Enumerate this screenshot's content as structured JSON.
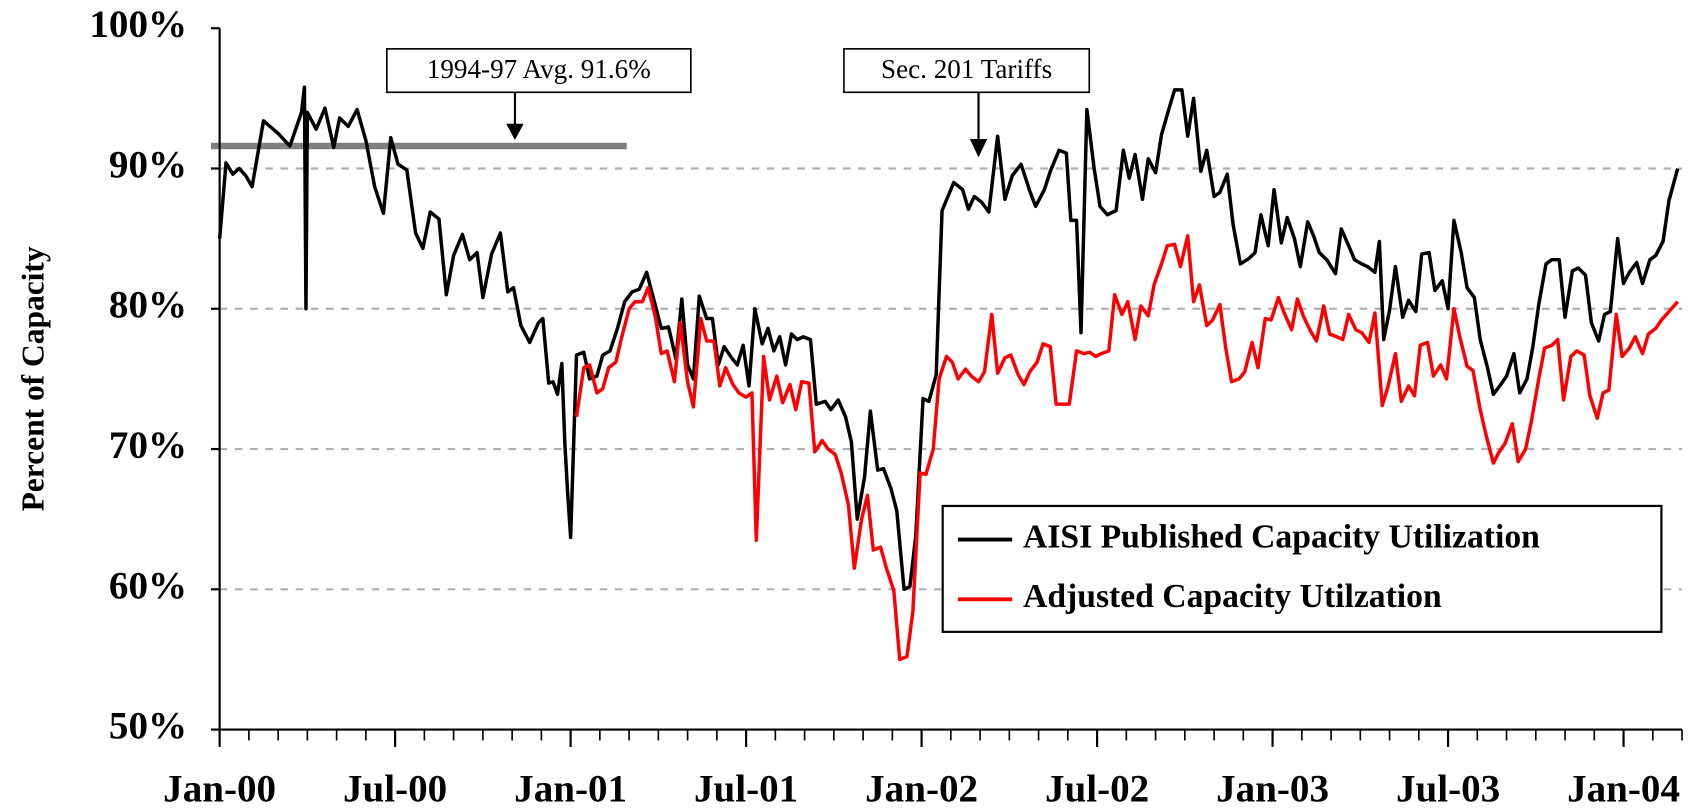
{
  "chart_data": {
    "type": "line",
    "ylabel": "Percent of Capacity",
    "annotations": [
      "1994-97 Avg. 91.6%",
      "Sec. 201 Tariffs"
    ],
    "reference_value": 91.6,
    "reference_color": "#808080",
    "xlim": [
      0,
      50
    ],
    "xticks": [
      {
        "value": 0,
        "label": "Jan-00"
      },
      {
        "value": 6,
        "label": "Jul-00"
      },
      {
        "value": 12,
        "label": "Jan-01"
      },
      {
        "value": 18,
        "label": "Jul-01"
      },
      {
        "value": 24,
        "label": "Jan-02"
      },
      {
        "value": 30,
        "label": "Jul-02"
      },
      {
        "value": 36,
        "label": "Jan-03"
      },
      {
        "value": 42,
        "label": "Jul-03"
      },
      {
        "value": 48,
        "label": "Jan-04"
      }
    ],
    "minor_ticks_every": 1,
    "ylim": [
      50,
      100
    ],
    "yticks": [
      {
        "value": 50,
        "label": "50%"
      },
      {
        "value": 60,
        "label": "60%"
      },
      {
        "value": 70,
        "label": "70%"
      },
      {
        "value": 80,
        "label": "80%"
      },
      {
        "value": 90,
        "label": "90%"
      },
      {
        "value": 100,
        "label": "100%"
      }
    ],
    "grid": true,
    "legend": "lower right",
    "series": [
      {
        "name": "AISI Published Capacity Utilization",
        "color": "#000000",
        "x": [
          0,
          0.22,
          0.45,
          0.67,
          0.89,
          1.11,
          1.5,
          2.0,
          2.4,
          2.8,
          2.9,
          2.95,
          3.0,
          3.3,
          3.6,
          3.9,
          4.1,
          4.4,
          4.7,
          5.0,
          5.3,
          5.6,
          5.85,
          6.1,
          6.4,
          6.7,
          6.95,
          7.2,
          7.5,
          7.75,
          8.0,
          8.3,
          8.55,
          8.8,
          9.0,
          9.3,
          9.6,
          9.85,
          10.05,
          10.3,
          10.6,
          10.9,
          11.05,
          11.25,
          11.4,
          11.55,
          11.7,
          11.8,
          11.9,
          12.0,
          12.2,
          12.45,
          12.65,
          12.9,
          13.1,
          13.35,
          13.6,
          13.85,
          14.1,
          14.35,
          14.6,
          14.85,
          15.1,
          15.35,
          15.6,
          15.8,
          16.0,
          16.2,
          16.4,
          16.65,
          16.85,
          17.05,
          17.25,
          17.5,
          17.7,
          17.9,
          18.1,
          18.3,
          18.55,
          18.75,
          18.95,
          19.15,
          19.35,
          19.55,
          19.75,
          19.95,
          20.2,
          20.4,
          20.7,
          20.9,
          21.15,
          21.4,
          21.6,
          21.8,
          22.05,
          22.25,
          22.5,
          22.7,
          22.95,
          23.15,
          23.4,
          23.6,
          23.8,
          24.05,
          24.25,
          24.5,
          24.7,
          25.1,
          25.4,
          25.6,
          25.8,
          26.05,
          26.3,
          26.6,
          26.85,
          27.1,
          27.4,
          27.7,
          27.9,
          28.2,
          28.4,
          28.7,
          28.95,
          29.1,
          29.3,
          29.45,
          29.65,
          29.9,
          30.1,
          30.35,
          30.65,
          30.9,
          31.1,
          31.3,
          31.55,
          31.75,
          32.0,
          32.2,
          32.45,
          32.65,
          32.9,
          33.1,
          33.3,
          33.55,
          33.75,
          34.0,
          34.2,
          34.45,
          34.65,
          34.9,
          35.2,
          35.4,
          35.6,
          35.85,
          36.05,
          36.3,
          36.5,
          36.75,
          36.95,
          37.2,
          37.4,
          37.6,
          37.85,
          38.15,
          38.35,
          38.6,
          38.8,
          39.05,
          39.25,
          39.5,
          39.65,
          39.8,
          40.0,
          40.2,
          40.45,
          40.65,
          40.9,
          41.1,
          41.35,
          41.55,
          41.8,
          42.0,
          42.2,
          42.45,
          42.65,
          42.9,
          43.1,
          43.35,
          43.55,
          43.8,
          44.0,
          44.25,
          44.45,
          44.7,
          44.9,
          45.1,
          45.35,
          45.55,
          45.8,
          46.0,
          46.25,
          46.45,
          46.7,
          46.9,
          47.15,
          47.35,
          47.55,
          47.8,
          48.0,
          48.2,
          48.45,
          48.65,
          48.9,
          49.1,
          49.35,
          49.55,
          49.85
        ],
        "values": [
          85.0,
          90.4,
          89.6,
          90.0,
          89.5,
          88.7,
          93.4,
          92.5,
          91.6,
          94.0,
          95.8,
          80.0,
          94.0,
          92.8,
          94.3,
          91.5,
          93.6,
          93.0,
          94.2,
          92.0,
          88.7,
          86.8,
          92.2,
          90.3,
          89.9,
          85.4,
          84.3,
          86.9,
          86.4,
          81.0,
          83.8,
          85.3,
          83.5,
          84.0,
          80.8,
          83.9,
          85.4,
          81.2,
          81.5,
          78.8,
          77.6,
          79.0,
          79.3,
          74.7,
          74.8,
          73.9,
          76.1,
          70.5,
          66.8,
          63.7,
          76.7,
          76.9,
          75.0,
          75.2,
          76.7,
          77.0,
          78.6,
          80.5,
          81.2,
          81.4,
          82.6,
          80.6,
          78.6,
          78.7,
          76.4,
          80.7,
          76.0,
          75.0,
          80.9,
          79.3,
          79.3,
          76.0,
          77.3,
          76.5,
          76.0,
          77.4,
          74.5,
          80.0,
          77.5,
          78.6,
          77.0,
          78.0,
          76.0,
          78.2,
          77.8,
          78.0,
          77.8,
          73.2,
          73.4,
          72.8,
          73.5,
          72.3,
          70.5,
          65.0,
          68.0,
          72.7,
          68.5,
          68.6,
          67.2,
          65.6,
          60.0,
          60.2,
          63.8,
          73.6,
          73.4,
          75.3,
          87.0,
          89.0,
          88.5,
          87.1,
          88.0,
          87.6,
          86.9,
          92.3,
          87.8,
          89.5,
          90.3,
          88.4,
          87.3,
          88.5,
          89.8,
          91.3,
          91.1,
          86.3,
          86.3,
          78.3,
          94.2,
          90.0,
          87.3,
          86.7,
          87.0,
          91.3,
          89.3,
          91.0,
          87.8,
          90.7,
          89.7,
          92.4,
          94.2,
          95.6,
          95.6,
          92.3,
          95.0,
          89.8,
          91.3,
          88.0,
          88.3,
          89.6,
          86.0,
          83.2,
          83.6,
          84.0,
          86.7,
          84.5,
          88.5,
          84.7,
          86.5,
          85.0,
          83.0,
          86.2,
          85.2,
          84.0,
          83.5,
          82.5,
          85.7,
          84.5,
          83.5,
          83.2,
          83.0,
          82.6,
          84.8,
          77.8,
          79.9,
          83.0,
          79.4,
          80.6,
          79.8,
          83.9,
          84.0,
          81.3,
          82.0,
          80.0,
          86.3,
          84.0,
          81.5,
          80.8,
          77.8,
          75.8,
          73.9,
          74.6,
          75.2,
          76.8,
          74.0,
          75.0,
          77.3,
          80.3,
          83.2,
          83.5,
          83.5,
          79.4,
          82.7,
          82.9,
          82.4,
          79.0,
          77.7,
          79.6,
          79.8,
          85.0,
          81.8,
          82.6,
          83.3,
          81.8,
          83.5,
          83.8,
          84.8,
          87.7,
          90.0
        ]
      },
      {
        "name": "Adjusted Capacity Utilzation",
        "color": "#ff0000",
        "x": [
          12.2,
          12.45,
          12.65,
          12.9,
          13.1,
          13.3,
          13.55,
          13.75,
          14.0,
          14.2,
          14.45,
          14.65,
          14.9,
          15.1,
          15.3,
          15.55,
          15.75,
          16.0,
          16.2,
          16.45,
          16.65,
          16.9,
          17.1,
          17.3,
          17.55,
          17.75,
          18.0,
          18.2,
          18.35,
          18.6,
          18.8,
          19.05,
          19.25,
          19.5,
          19.7,
          19.9,
          20.15,
          20.35,
          20.6,
          20.8,
          21.05,
          21.25,
          21.5,
          21.7,
          21.95,
          22.15,
          22.35,
          22.6,
          22.8,
          23.05,
          23.25,
          23.5,
          23.7,
          23.95,
          24.15,
          24.4,
          24.6,
          24.85,
          25.05,
          25.25,
          25.5,
          25.7,
          25.95,
          26.15,
          26.4,
          26.6,
          26.85,
          27.05,
          27.3,
          27.5,
          27.7,
          27.95,
          28.15,
          28.4,
          28.6,
          28.85,
          29.05,
          29.3,
          29.55,
          29.75,
          29.95,
          30.15,
          30.4,
          30.6,
          30.85,
          31.05,
          31.3,
          31.5,
          31.75,
          31.95,
          32.2,
          32.4,
          32.65,
          32.85,
          33.1,
          33.3,
          33.5,
          33.75,
          33.95,
          34.2,
          34.4,
          34.6,
          34.85,
          35.05,
          35.3,
          35.5,
          35.75,
          35.95,
          36.2,
          36.4,
          36.65,
          36.85,
          37.05,
          37.3,
          37.5,
          37.75,
          37.95,
          38.2,
          38.4,
          38.6,
          38.85,
          39.05,
          39.3,
          39.5,
          39.75,
          39.95,
          40.2,
          40.4,
          40.65,
          40.85,
          41.05,
          41.3,
          41.5,
          41.75,
          41.95,
          42.2,
          42.4,
          42.65,
          42.85,
          43.1,
          43.3,
          43.55,
          43.75,
          43.95,
          44.2,
          44.4,
          44.65,
          44.85,
          45.1,
          45.3,
          45.55,
          45.75,
          45.95,
          46.2,
          46.4,
          46.65,
          46.85,
          47.1,
          47.3,
          47.5,
          47.75,
          47.95,
          48.2,
          48.4,
          48.65,
          48.85,
          49.1,
          49.3,
          49.55,
          49.85
        ],
        "values": [
          72.3,
          75.8,
          76.0,
          74.0,
          74.3,
          75.8,
          76.2,
          78.0,
          80.0,
          80.5,
          80.5,
          81.5,
          79.4,
          76.8,
          77.0,
          74.8,
          79.0,
          74.8,
          73.0,
          79.3,
          77.7,
          77.7,
          74.5,
          75.8,
          74.6,
          74.0,
          73.7,
          74.0,
          63.5,
          76.6,
          73.5,
          75.2,
          73.3,
          74.6,
          72.8,
          74.8,
          74.7,
          69.8,
          70.6,
          70.0,
          69.6,
          68.3,
          66.0,
          61.5,
          65.0,
          66.7,
          62.8,
          63.0,
          61.5,
          59.9,
          55.0,
          55.2,
          58.4,
          68.3,
          68.2,
          70.0,
          75.0,
          76.6,
          76.2,
          75.0,
          75.7,
          75.2,
          74.8,
          75.5,
          79.6,
          75.4,
          76.5,
          76.7,
          75.3,
          74.6,
          75.5,
          76.2,
          77.5,
          77.3,
          73.2,
          73.2,
          73.2,
          77.0,
          76.8,
          76.9,
          76.6,
          76.8,
          77.0,
          81.0,
          79.6,
          80.5,
          77.8,
          80.2,
          79.5,
          81.7,
          83.2,
          84.5,
          84.6,
          83.0,
          85.2,
          80.5,
          81.7,
          78.8,
          79.2,
          80.3,
          77.2,
          74.8,
          75.0,
          75.5,
          77.6,
          75.8,
          79.3,
          79.2,
          80.8,
          79.7,
          78.5,
          80.7,
          79.5,
          78.4,
          77.7,
          80.2,
          78.2,
          78.0,
          77.8,
          79.6,
          78.5,
          78.3,
          77.6,
          79.7,
          73.1,
          74.5,
          76.8,
          73.4,
          74.5,
          73.8,
          77.4,
          77.6,
          75.2,
          76.0,
          75.0,
          80.0,
          78.0,
          75.9,
          75.6,
          72.8,
          71.0,
          69.0,
          69.8,
          70.4,
          71.8,
          69.1,
          70.0,
          72.0,
          75.0,
          77.2,
          77.4,
          77.8,
          73.5,
          76.6,
          77.0,
          76.7,
          73.8,
          72.2,
          74.0,
          74.2,
          79.6,
          76.6,
          77.2,
          78.0,
          76.8,
          78.2,
          78.6,
          79.2,
          79.8,
          80.5
        ]
      }
    ]
  }
}
